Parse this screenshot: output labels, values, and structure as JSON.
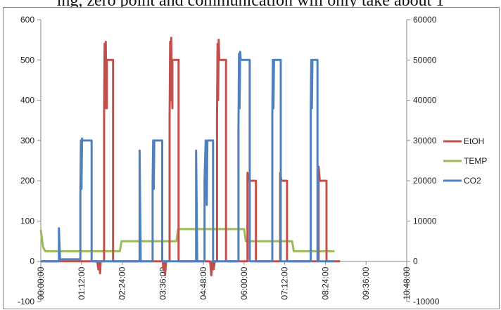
{
  "caption": "ing, zero point and communication will only take about 1",
  "chart_data": {
    "type": "line",
    "x_ticks": [
      "00:00:00",
      "01:12:00",
      "02:24:00",
      "03:36:00",
      "04:48:00",
      "06:00:00",
      "07:12:00",
      "08:24:00",
      "09:36:00",
      "10:48:00"
    ],
    "xlim": [
      0,
      648
    ],
    "y_left": {
      "ticks": [
        "-100",
        "0",
        "100",
        "200",
        "300",
        "400",
        "500",
        "600"
      ],
      "lim": [
        -100,
        600
      ]
    },
    "y_right": {
      "ticks": [
        "-10000",
        "0",
        "10000",
        "20000",
        "30000",
        "40000",
        "50000",
        "60000"
      ],
      "lim": [
        -10000,
        60000
      ]
    },
    "grid": false,
    "legend_position": "right",
    "series": [
      {
        "name": "EtOH",
        "axis": "left",
        "color": "#C0504D",
        "points": [
          [
            0,
            0
          ],
          [
            100,
            0
          ],
          [
            102,
            -20
          ],
          [
            103,
            0
          ],
          [
            105,
            -30
          ],
          [
            106,
            0
          ],
          [
            112,
            0
          ],
          [
            112,
            350
          ],
          [
            113,
            540
          ],
          [
            114,
            380
          ],
          [
            115,
            545
          ],
          [
            116,
            400
          ],
          [
            117,
            380
          ],
          [
            117,
            500
          ],
          [
            128,
            500
          ],
          [
            128,
            0
          ],
          [
            216,
            0
          ],
          [
            217,
            -20
          ],
          [
            219,
            0
          ],
          [
            220,
            -35
          ],
          [
            222,
            0
          ],
          [
            228,
            0
          ],
          [
            228,
            350
          ],
          [
            229,
            545
          ],
          [
            230,
            400
          ],
          [
            231,
            555
          ],
          [
            232,
            430
          ],
          [
            233,
            380
          ],
          [
            233,
            500
          ],
          [
            244,
            500
          ],
          [
            244,
            0
          ],
          [
            300,
            0
          ],
          [
            302,
            -35
          ],
          [
            304,
            0
          ],
          [
            306,
            -20
          ],
          [
            308,
            0
          ],
          [
            312,
            0
          ],
          [
            312,
            350
          ],
          [
            313,
            540
          ],
          [
            314,
            400
          ],
          [
            315,
            550
          ],
          [
            316,
            500
          ],
          [
            318,
            500
          ],
          [
            328,
            500
          ],
          [
            328,
            0
          ],
          [
            366,
            0
          ],
          [
            366,
            220
          ],
          [
            368,
            200
          ],
          [
            381,
            200
          ],
          [
            381,
            0
          ],
          [
            424,
            0
          ],
          [
            424,
            220
          ],
          [
            426,
            200
          ],
          [
            436,
            200
          ],
          [
            436,
            0
          ],
          [
            492,
            0
          ],
          [
            492,
            235
          ],
          [
            494,
            200
          ],
          [
            506,
            200
          ],
          [
            506,
            0
          ],
          [
            530,
            0
          ]
        ]
      },
      {
        "name": "TEMP",
        "axis": "left",
        "color": "#9BBB59",
        "points": [
          [
            0,
            78
          ],
          [
            4,
            35
          ],
          [
            8,
            25
          ],
          [
            140,
            25
          ],
          [
            143,
            50
          ],
          [
            240,
            50
          ],
          [
            243,
            80
          ],
          [
            360,
            80
          ],
          [
            363,
            50
          ],
          [
            445,
            50
          ],
          [
            448,
            25
          ],
          [
            520,
            25
          ]
        ]
      },
      {
        "name": "CO2",
        "axis": "left",
        "color": "#4F81BD",
        "points": [
          [
            0,
            0
          ],
          [
            32,
            0
          ],
          [
            32,
            82
          ],
          [
            34,
            5
          ],
          [
            70,
            5
          ],
          [
            70,
            160
          ],
          [
            71,
            300
          ],
          [
            72,
            180
          ],
          [
            73,
            305
          ],
          [
            74,
            300
          ],
          [
            90,
            300
          ],
          [
            90,
            0
          ],
          [
            175,
            0
          ],
          [
            175,
            275
          ],
          [
            177,
            0
          ],
          [
            198,
            0
          ],
          [
            198,
            200
          ],
          [
            199,
            300
          ],
          [
            200,
            180
          ],
          [
            201,
            300
          ],
          [
            215,
            300
          ],
          [
            215,
            0
          ],
          [
            275,
            0
          ],
          [
            275,
            275
          ],
          [
            277,
            0
          ],
          [
            290,
            0
          ],
          [
            290,
            200
          ],
          [
            292,
            300
          ],
          [
            294,
            140
          ],
          [
            295,
            300
          ],
          [
            305,
            300
          ],
          [
            305,
            0
          ],
          [
            350,
            0
          ],
          [
            350,
            330
          ],
          [
            351,
            515
          ],
          [
            352,
            380
          ],
          [
            353,
            520
          ],
          [
            354,
            500
          ],
          [
            370,
            500
          ],
          [
            370,
            0
          ],
          [
            410,
            0
          ],
          [
            410,
            360
          ],
          [
            411,
            500
          ],
          [
            412,
            380
          ],
          [
            413,
            500
          ],
          [
            425,
            500
          ],
          [
            425,
            0
          ],
          [
            478,
            0
          ],
          [
            478,
            370
          ],
          [
            479,
            500
          ],
          [
            480,
            380
          ],
          [
            481,
            500
          ],
          [
            490,
            500
          ],
          [
            490,
            0
          ],
          [
            520,
            0
          ]
        ]
      }
    ]
  }
}
